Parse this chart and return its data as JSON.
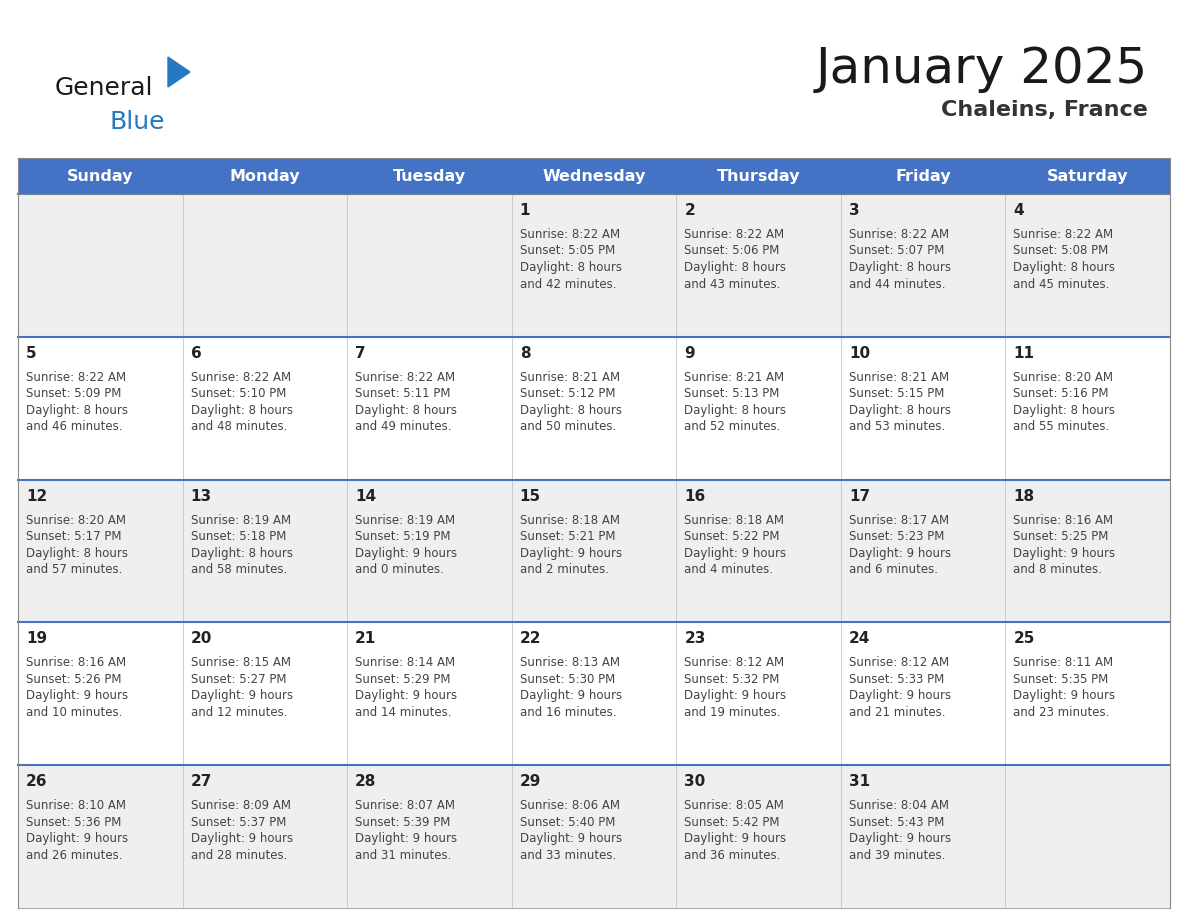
{
  "title": "January 2025",
  "subtitle": "Chaleins, France",
  "header_color": "#4472C4",
  "header_text_color": "#FFFFFF",
  "days_of_week": [
    "Sunday",
    "Monday",
    "Tuesday",
    "Wednesday",
    "Thursday",
    "Friday",
    "Saturday"
  ],
  "row_bg_colors": [
    "#EFEFEF",
    "#FFFFFF"
  ],
  "week_separator_color": "#4472C4",
  "title_color": "#1a1a1a",
  "subtitle_color": "#333333",
  "day_number_color": "#222222",
  "cell_text_color": "#444444",
  "logo_black": "#1a1a1a",
  "logo_blue": "#2479C0",
  "calendar": [
    [
      {
        "day": null,
        "sunrise": null,
        "sunset": null,
        "daylight": null
      },
      {
        "day": null,
        "sunrise": null,
        "sunset": null,
        "daylight": null
      },
      {
        "day": null,
        "sunrise": null,
        "sunset": null,
        "daylight": null
      },
      {
        "day": 1,
        "sunrise": "8:22 AM",
        "sunset": "5:05 PM",
        "daylight": "8 hours\nand 42 minutes."
      },
      {
        "day": 2,
        "sunrise": "8:22 AM",
        "sunset": "5:06 PM",
        "daylight": "8 hours\nand 43 minutes."
      },
      {
        "day": 3,
        "sunrise": "8:22 AM",
        "sunset": "5:07 PM",
        "daylight": "8 hours\nand 44 minutes."
      },
      {
        "day": 4,
        "sunrise": "8:22 AM",
        "sunset": "5:08 PM",
        "daylight": "8 hours\nand 45 minutes."
      }
    ],
    [
      {
        "day": 5,
        "sunrise": "8:22 AM",
        "sunset": "5:09 PM",
        "daylight": "8 hours\nand 46 minutes."
      },
      {
        "day": 6,
        "sunrise": "8:22 AM",
        "sunset": "5:10 PM",
        "daylight": "8 hours\nand 48 minutes."
      },
      {
        "day": 7,
        "sunrise": "8:22 AM",
        "sunset": "5:11 PM",
        "daylight": "8 hours\nand 49 minutes."
      },
      {
        "day": 8,
        "sunrise": "8:21 AM",
        "sunset": "5:12 PM",
        "daylight": "8 hours\nand 50 minutes."
      },
      {
        "day": 9,
        "sunrise": "8:21 AM",
        "sunset": "5:13 PM",
        "daylight": "8 hours\nand 52 minutes."
      },
      {
        "day": 10,
        "sunrise": "8:21 AM",
        "sunset": "5:15 PM",
        "daylight": "8 hours\nand 53 minutes."
      },
      {
        "day": 11,
        "sunrise": "8:20 AM",
        "sunset": "5:16 PM",
        "daylight": "8 hours\nand 55 minutes."
      }
    ],
    [
      {
        "day": 12,
        "sunrise": "8:20 AM",
        "sunset": "5:17 PM",
        "daylight": "8 hours\nand 57 minutes."
      },
      {
        "day": 13,
        "sunrise": "8:19 AM",
        "sunset": "5:18 PM",
        "daylight": "8 hours\nand 58 minutes."
      },
      {
        "day": 14,
        "sunrise": "8:19 AM",
        "sunset": "5:19 PM",
        "daylight": "9 hours\nand 0 minutes."
      },
      {
        "day": 15,
        "sunrise": "8:18 AM",
        "sunset": "5:21 PM",
        "daylight": "9 hours\nand 2 minutes."
      },
      {
        "day": 16,
        "sunrise": "8:18 AM",
        "sunset": "5:22 PM",
        "daylight": "9 hours\nand 4 minutes."
      },
      {
        "day": 17,
        "sunrise": "8:17 AM",
        "sunset": "5:23 PM",
        "daylight": "9 hours\nand 6 minutes."
      },
      {
        "day": 18,
        "sunrise": "8:16 AM",
        "sunset": "5:25 PM",
        "daylight": "9 hours\nand 8 minutes."
      }
    ],
    [
      {
        "day": 19,
        "sunrise": "8:16 AM",
        "sunset": "5:26 PM",
        "daylight": "9 hours\nand 10 minutes."
      },
      {
        "day": 20,
        "sunrise": "8:15 AM",
        "sunset": "5:27 PM",
        "daylight": "9 hours\nand 12 minutes."
      },
      {
        "day": 21,
        "sunrise": "8:14 AM",
        "sunset": "5:29 PM",
        "daylight": "9 hours\nand 14 minutes."
      },
      {
        "day": 22,
        "sunrise": "8:13 AM",
        "sunset": "5:30 PM",
        "daylight": "9 hours\nand 16 minutes."
      },
      {
        "day": 23,
        "sunrise": "8:12 AM",
        "sunset": "5:32 PM",
        "daylight": "9 hours\nand 19 minutes."
      },
      {
        "day": 24,
        "sunrise": "8:12 AM",
        "sunset": "5:33 PM",
        "daylight": "9 hours\nand 21 minutes."
      },
      {
        "day": 25,
        "sunrise": "8:11 AM",
        "sunset": "5:35 PM",
        "daylight": "9 hours\nand 23 minutes."
      }
    ],
    [
      {
        "day": 26,
        "sunrise": "8:10 AM",
        "sunset": "5:36 PM",
        "daylight": "9 hours\nand 26 minutes."
      },
      {
        "day": 27,
        "sunrise": "8:09 AM",
        "sunset": "5:37 PM",
        "daylight": "9 hours\nand 28 minutes."
      },
      {
        "day": 28,
        "sunrise": "8:07 AM",
        "sunset": "5:39 PM",
        "daylight": "9 hours\nand 31 minutes."
      },
      {
        "day": 29,
        "sunrise": "8:06 AM",
        "sunset": "5:40 PM",
        "daylight": "9 hours\nand 33 minutes."
      },
      {
        "day": 30,
        "sunrise": "8:05 AM",
        "sunset": "5:42 PM",
        "daylight": "9 hours\nand 36 minutes."
      },
      {
        "day": 31,
        "sunrise": "8:04 AM",
        "sunset": "5:43 PM",
        "daylight": "9 hours\nand 39 minutes."
      },
      {
        "day": null,
        "sunrise": null,
        "sunset": null,
        "daylight": null
      }
    ]
  ]
}
